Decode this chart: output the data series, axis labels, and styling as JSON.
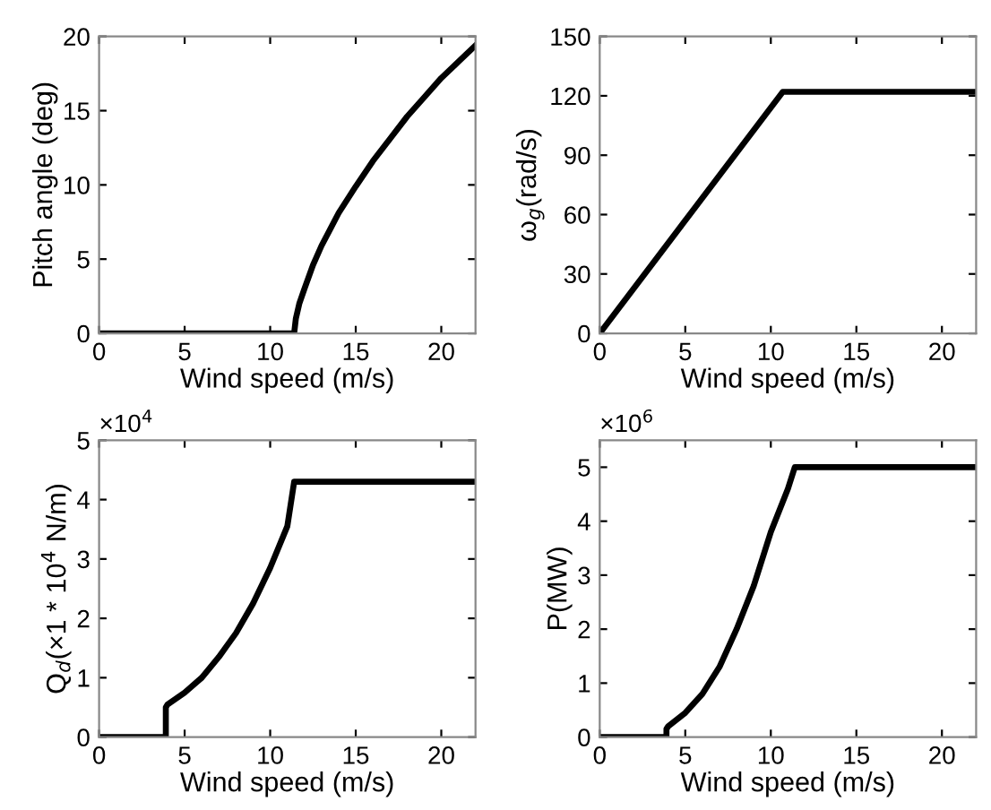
{
  "chart_data": [
    {
      "type": "line",
      "xlabel": "Wind speed (m/s)",
      "ylabel": "Pitch angle (deg)",
      "xlim": [
        0,
        22
      ],
      "xticks": [
        0,
        5,
        10,
        15,
        20
      ],
      "ylim": [
        0,
        20
      ],
      "yticks": [
        0,
        5,
        10,
        15,
        20
      ],
      "grid": false,
      "series": [
        {
          "color": "#000000",
          "x": [
            0,
            11.4,
            11.5,
            11.7,
            12,
            12.5,
            13,
            14,
            15,
            16,
            17,
            18,
            19,
            20,
            21,
            22
          ],
          "values": [
            0,
            0,
            1,
            2,
            3,
            4.6,
            5.9,
            8.1,
            9.9,
            11.6,
            13.1,
            14.6,
            15.9,
            17.2,
            18.3,
            19.4
          ]
        }
      ]
    },
    {
      "type": "line",
      "xlabel": "Wind speed (m/s)",
      "ylabel": "ω$_{g}$(rad/s)",
      "xlim": [
        0,
        22
      ],
      "xticks": [
        0,
        5,
        10,
        15,
        20
      ],
      "ylim": [
        0,
        150
      ],
      "yticks": [
        0,
        30,
        60,
        90,
        120,
        150
      ],
      "grid": false,
      "series": [
        {
          "color": "#000000",
          "x": [
            0,
            10.7,
            22
          ],
          "values": [
            0,
            122,
            122
          ]
        }
      ]
    },
    {
      "type": "line",
      "xlabel": "Wind speed (m/s)",
      "ylabel": "Q$_{d}$(×1 * 10$^{4}$ N/m)",
      "annotations": [
        "×10$^{4}$"
      ],
      "xlim": [
        0,
        22
      ],
      "xticks": [
        0,
        5,
        10,
        15,
        20
      ],
      "ylim": [
        0,
        5
      ],
      "yticks": [
        0,
        1,
        2,
        3,
        4,
        5
      ],
      "grid": false,
      "series": [
        {
          "color": "#000000",
          "x": [
            0,
            3.9,
            3.9,
            4,
            5,
            6,
            7,
            8,
            9,
            10,
            11,
            11.4,
            22
          ],
          "values": [
            0,
            0,
            0.5,
            0.55,
            0.75,
            1.0,
            1.35,
            1.75,
            2.25,
            2.85,
            3.55,
            4.3,
            4.3
          ]
        }
      ]
    },
    {
      "type": "line",
      "xlabel": "Wind speed (m/s)",
      "ylabel": "P(MW)",
      "annotations": [
        "×10$^{6}$"
      ],
      "xlim": [
        0,
        22
      ],
      "xticks": [
        0,
        5,
        10,
        15,
        20
      ],
      "ylim": [
        0,
        5.5
      ],
      "yticks": [
        0,
        1,
        2,
        3,
        4,
        5
      ],
      "grid": false,
      "series": [
        {
          "color": "#000000",
          "x": [
            0,
            3.9,
            3.9,
            4,
            5,
            6,
            7,
            8,
            9,
            10,
            11,
            11.4,
            22
          ],
          "values": [
            0,
            0,
            0.15,
            0.2,
            0.45,
            0.8,
            1.3,
            2.0,
            2.8,
            3.8,
            4.6,
            5.0,
            5.0
          ]
        }
      ]
    }
  ]
}
